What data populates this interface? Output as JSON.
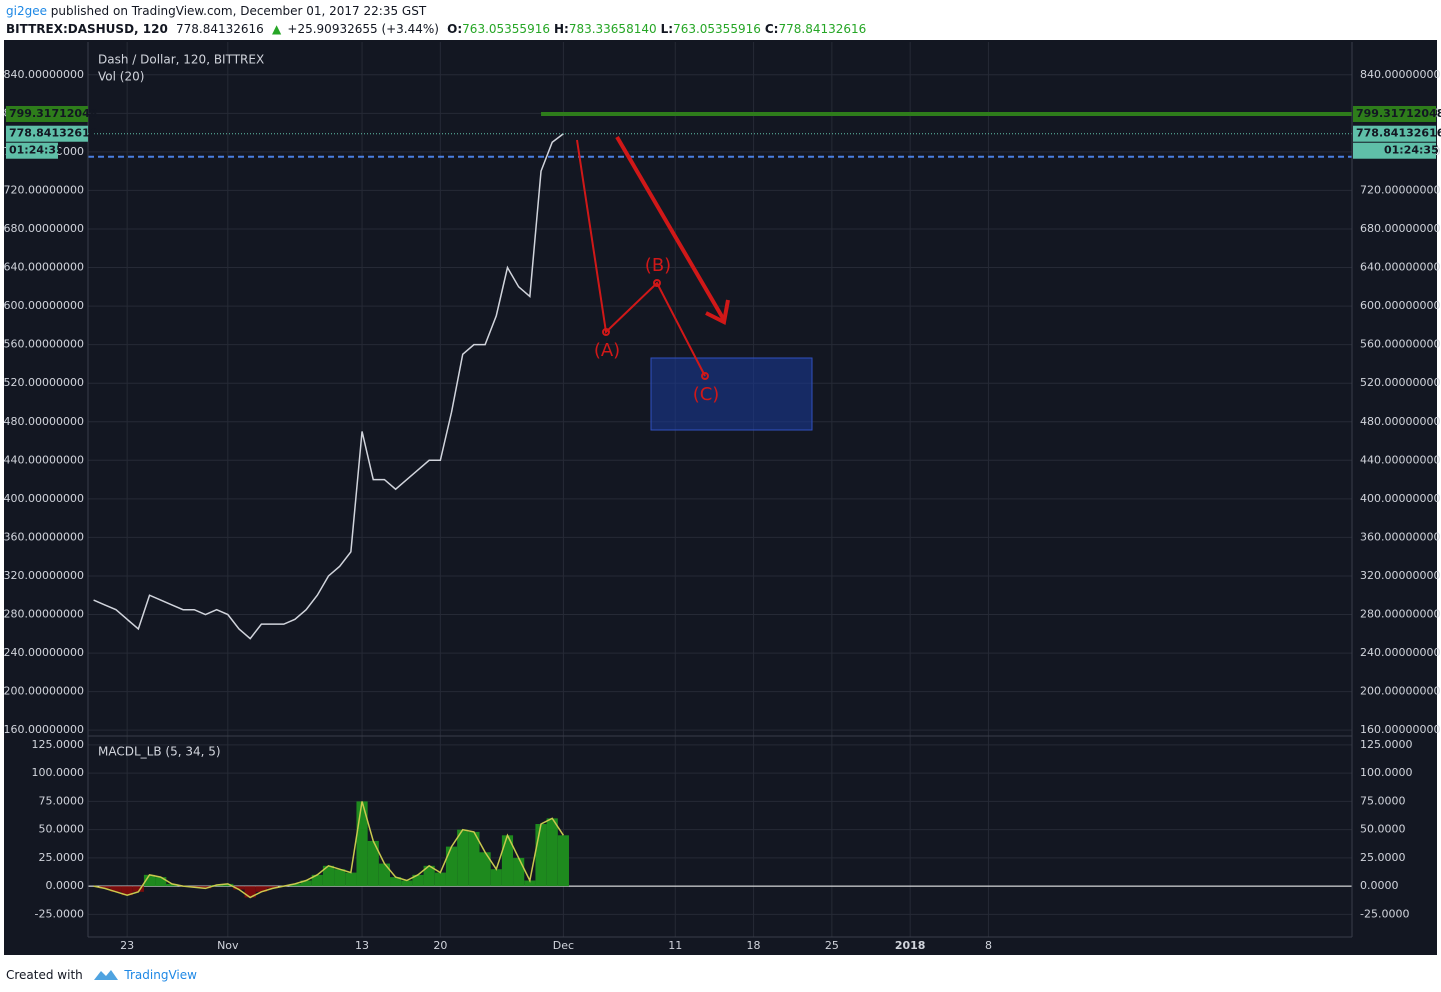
{
  "header": {
    "author": "gi2gee",
    "published": "published on TradingView.com, December 01, 2017 22:35 GST",
    "symbol": "BITTREX:DASHUSD, 120",
    "last": "778.84132616",
    "arrow": "▲",
    "change": "+25.90932655 (+3.44%)",
    "ohlc": [
      [
        "O:",
        "763.05355916"
      ],
      [
        "H:",
        "783.33658140"
      ],
      [
        "L:",
        "763.05355916"
      ],
      [
        "C:",
        "778.84132616"
      ]
    ]
  },
  "footer": {
    "created": "Created with",
    "brand": "TradingView"
  },
  "chart_data": [
    {
      "type": "line",
      "title": "Dash / Dollar, 120, BITTREX",
      "subtitle": "Vol (20)",
      "color": "#d1d4dc",
      "grid": true,
      "categories": [
        null,
        null,
        null,
        "23",
        null,
        null,
        null,
        null,
        null,
        null,
        null,
        null,
        "Nov",
        null,
        null,
        null,
        null,
        null,
        null,
        null,
        null,
        null,
        null,
        null,
        "13",
        null,
        null,
        null,
        null,
        null,
        null,
        "20",
        null,
        null,
        null,
        null,
        null,
        null,
        null,
        null,
        null,
        null,
        "Dec",
        null,
        null,
        null,
        null,
        null,
        null,
        null,
        null,
        null,
        "11",
        null,
        null,
        null,
        null,
        null,
        null,
        "18",
        null,
        null,
        null,
        null,
        null,
        null,
        "25",
        null,
        null,
        null,
        null,
        null,
        null,
        "2018",
        null,
        null,
        null,
        null,
        null,
        null,
        "8",
        null,
        null,
        null,
        null,
        null,
        null,
        null,
        null,
        null,
        null,
        null,
        null,
        null,
        null,
        null,
        null,
        null,
        null,
        null,
        null,
        null,
        null,
        null,
        null,
        null,
        null,
        null,
        null,
        null,
        null,
        null,
        null
      ],
      "values": [
        295,
        290,
        285,
        275,
        265,
        300,
        295,
        290,
        285,
        285,
        280,
        285,
        280,
        265,
        255,
        270,
        270,
        270,
        275,
        285,
        300,
        320,
        330,
        345,
        470,
        420,
        420,
        410,
        420,
        430,
        440,
        440,
        490,
        550,
        560,
        560,
        590,
        640,
        620,
        610,
        740,
        770,
        778.84132616,
        null,
        null,
        null,
        null,
        null,
        null,
        null,
        null,
        null,
        null,
        null,
        null,
        null,
        null,
        null,
        null,
        null,
        null,
        null,
        null,
        null,
        null,
        null,
        null,
        null,
        null,
        null,
        null,
        null,
        null,
        null,
        null,
        null,
        null,
        null,
        null,
        null,
        null,
        null,
        null,
        null,
        null,
        null,
        null,
        null,
        null,
        null,
        null,
        null,
        null,
        null,
        null,
        null,
        null,
        null,
        null,
        null,
        null,
        null,
        null,
        null,
        null,
        null,
        null,
        null,
        null,
        null,
        null,
        null,
        null
      ],
      "ylim": [
        155,
        874
      ],
      "yticks": [
        {
          "value": 160,
          "label": "160.00000000"
        },
        {
          "value": 200,
          "label": "200.00000000"
        },
        {
          "value": 240,
          "label": "240.00000000"
        },
        {
          "value": 280,
          "label": "280.00000000"
        },
        {
          "value": 320,
          "label": "320.00000000"
        },
        {
          "value": 360,
          "label": "360.00000000"
        },
        {
          "value": 400,
          "label": "400.00000000"
        },
        {
          "value": 440,
          "label": "440.00000000"
        },
        {
          "value": 480,
          "label": "480.00000000"
        },
        {
          "value": 520,
          "label": "520.00000000"
        },
        {
          "value": 560,
          "label": "560.00000000"
        },
        {
          "value": 600,
          "label": "600.00000000"
        },
        {
          "value": 640,
          "label": "640.00000000"
        },
        {
          "value": 680,
          "label": "680.00000000"
        },
        {
          "value": 720,
          "label": "720.00000000"
        },
        {
          "value": 760,
          "label": "760.00000000"
        },
        {
          "value": 800,
          "label": "800.00000000"
        },
        {
          "value": 840,
          "label": "840.00000000"
        }
      ],
      "price_lines": [
        {
          "value": 799.31712048,
          "color": "#2e7d1b",
          "style": "solid",
          "boxed": true
        },
        {
          "value": 778.84132616,
          "color": "#5fbfa8",
          "style": "dotted",
          "boxed": true
        },
        {
          "value": 755,
          "color": "#4a7fe0",
          "style": "dashed",
          "boxed": false
        }
      ],
      "countdown": "01:24:35",
      "annotations": [
        "(A)",
        "(B)",
        "(C)"
      ]
    },
    {
      "type": "bar",
      "title": "MACDL_LB (5, 34, 5)",
      "positive_color": "#1e8a1e",
      "negative_color": "#7a0c0c",
      "line_color": "#c9c84e",
      "grid": true,
      "values": [
        0,
        -2,
        -5,
        -8,
        -5,
        10,
        8,
        2,
        0,
        -1,
        -2,
        1,
        2,
        -3,
        -10,
        -5,
        -2,
        0,
        2,
        5,
        10,
        18,
        15,
        12,
        75,
        40,
        20,
        8,
        5,
        10,
        18,
        12,
        35,
        50,
        48,
        30,
        15,
        45,
        25,
        5,
        55,
        60,
        45,
        null,
        null,
        null,
        null,
        null,
        null,
        null,
        null,
        null,
        null,
        null,
        null,
        null,
        null,
        null,
        null,
        null,
        null,
        null,
        null,
        null,
        null,
        null,
        null,
        null,
        null,
        null,
        null,
        null,
        null,
        null,
        null,
        null,
        null,
        null,
        null,
        null,
        null,
        null,
        null,
        null,
        null,
        null,
        null,
        null,
        null,
        null,
        null,
        null,
        null,
        null,
        null,
        null,
        null,
        null,
        null,
        null,
        null,
        null,
        null,
        null,
        null,
        null,
        null,
        null,
        null,
        null,
        null,
        null,
        null
      ],
      "ylim": [
        -45,
        132
      ],
      "yticks": [
        {
          "value": -25,
          "label": "-25.0000"
        },
        {
          "value": 0,
          "label": "0.0000"
        },
        {
          "value": 25,
          "label": "25.0000"
        },
        {
          "value": 50,
          "label": "50.0000"
        },
        {
          "value": 75,
          "label": "75.0000"
        },
        {
          "value": 100,
          "label": "100.0000"
        },
        {
          "value": 125,
          "label": "125.0000"
        }
      ]
    }
  ]
}
